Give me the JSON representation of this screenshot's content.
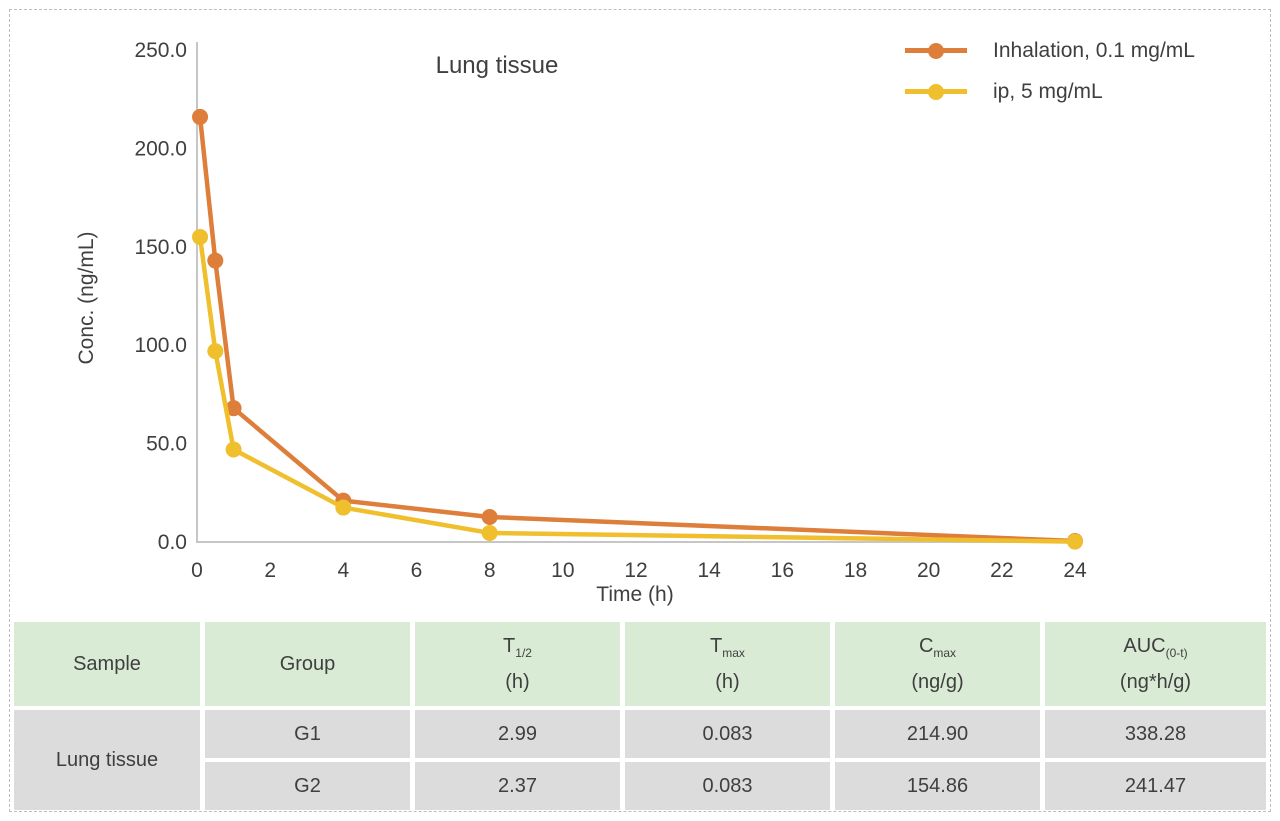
{
  "page": {
    "background": "#ffffff",
    "border_color": "#bdbdbd",
    "text_color": "#3f3f3f"
  },
  "chart_data": {
    "type": "line",
    "title": "Lung tissue",
    "xlabel": "Time (h)",
    "ylabel": "Conc. (ng/mL)",
    "xlim": [
      0,
      24
    ],
    "ylim": [
      0,
      250
    ],
    "x_ticks": [
      0,
      2,
      4,
      6,
      8,
      10,
      12,
      14,
      16,
      18,
      20,
      22,
      24
    ],
    "y_ticks": [
      0,
      50,
      100,
      150,
      200,
      250
    ],
    "y_tick_decimals": 1,
    "grid": false,
    "legend_position": "top-right",
    "axis_color": "#c6c6c6",
    "series": [
      {
        "name": "Inhalation, 0.1 mg/mL",
        "color": "#dd7e3b",
        "x": [
          0.083,
          0.5,
          1,
          4,
          8,
          24
        ],
        "values": [
          216,
          143,
          68,
          21,
          12.7,
          0.5
        ]
      },
      {
        "name": "ip, 5 mg/mL",
        "color": "#efbf2d",
        "x": [
          0.083,
          0.5,
          1,
          4,
          8,
          24
        ],
        "values": [
          155,
          97,
          47,
          17.5,
          4.6,
          0.2
        ]
      }
    ]
  },
  "table": {
    "header_bg": "#d9ebd5",
    "body_bg": "#dcdcdc",
    "headers": [
      {
        "base": "Sample"
      },
      {
        "base": "Group"
      },
      {
        "base": "T",
        "sub": "1/2",
        "unit": "(h)"
      },
      {
        "base": "T",
        "sub": "max",
        "unit": "(h)"
      },
      {
        "base": "C",
        "sub": "max",
        "unit": "(ng/g)"
      },
      {
        "base": "AUC",
        "sub": "(0-t)",
        "unit": "(ng*h/g)"
      }
    ],
    "sample_label": "Lung tissue",
    "rows": [
      {
        "group": "G1",
        "t_half": "2.99",
        "t_max": "0.083",
        "c_max": "214.90",
        "auc": "338.28"
      },
      {
        "group": "G2",
        "t_half": "2.37",
        "t_max": "0.083",
        "c_max": "154.86",
        "auc": "241.47"
      }
    ]
  }
}
